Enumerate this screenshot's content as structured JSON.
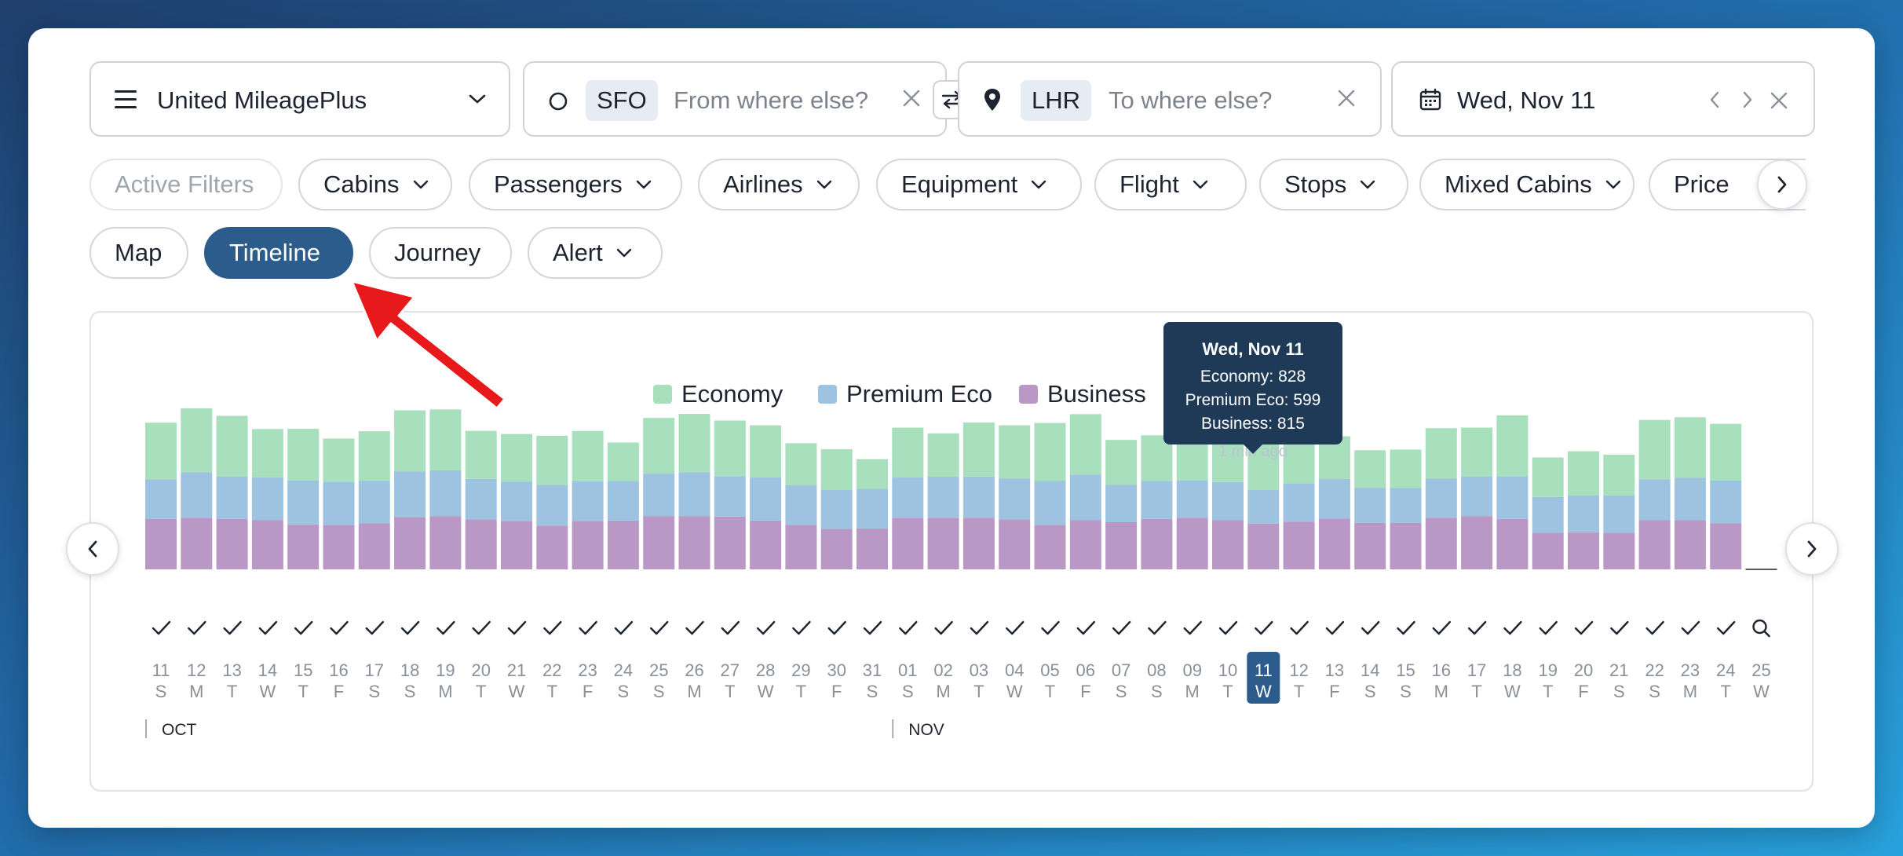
{
  "program": {
    "label": "United MileagePlus"
  },
  "origin": {
    "code": "SFO",
    "placeholder": "From where else?"
  },
  "destination": {
    "code": "LHR",
    "placeholder": "To where else?"
  },
  "date": {
    "label": "Wed, Nov 11"
  },
  "filters": [
    "Active Filters",
    "Cabins",
    "Passengers",
    "Airlines",
    "Equipment",
    "Flight",
    "Stops",
    "Mixed Cabins",
    "Price"
  ],
  "views": [
    "Map",
    "Timeline",
    "Journey",
    "Alert"
  ],
  "legend": [
    "Economy",
    "Premium Eco",
    "Business"
  ],
  "colors": {
    "economy": "#a8dfbd",
    "premium": "#9ec3e0",
    "business": "#b998c6",
    "accent": "#2c5c8c",
    "arrow": "#e8191a"
  },
  "tooltip": {
    "title": "Wed, Nov 11",
    "economy": "Economy: 828",
    "premium": "Premium Eco: 599",
    "business": "Business: 815",
    "time": "1 min ago"
  },
  "months": [
    "OCT",
    "NOV"
  ],
  "chart_data": {
    "type": "bar",
    "stacked": true,
    "categories": [
      "11",
      "12",
      "13",
      "14",
      "15",
      "16",
      "17",
      "18",
      "19",
      "20",
      "21",
      "22",
      "23",
      "24",
      "25",
      "26",
      "27",
      "28",
      "29",
      "30",
      "31",
      "01",
      "02",
      "03",
      "04",
      "05",
      "06",
      "07",
      "08",
      "09",
      "10",
      "11",
      "12",
      "13",
      "14",
      "15",
      "16",
      "17",
      "18",
      "19",
      "20",
      "21",
      "22",
      "23",
      "24",
      "25"
    ],
    "weekdays": [
      "S",
      "M",
      "T",
      "W",
      "T",
      "F",
      "S",
      "S",
      "M",
      "T",
      "W",
      "T",
      "F",
      "S",
      "S",
      "M",
      "T",
      "W",
      "T",
      "F",
      "S",
      "S",
      "M",
      "T",
      "W",
      "T",
      "F",
      "S",
      "S",
      "M",
      "T",
      "W",
      "T",
      "F",
      "S",
      "S",
      "M",
      "T",
      "W",
      "T",
      "F",
      "S",
      "S",
      "M",
      "T",
      "W"
    ],
    "checked": [
      true,
      true,
      true,
      true,
      true,
      true,
      true,
      true,
      true,
      true,
      true,
      true,
      true,
      true,
      true,
      true,
      true,
      true,
      true,
      true,
      true,
      true,
      true,
      true,
      true,
      true,
      true,
      true,
      true,
      true,
      true,
      true,
      true,
      true,
      true,
      true,
      true,
      true,
      true,
      true,
      true,
      true,
      true,
      true,
      true,
      false
    ],
    "selected_index": 31,
    "series": [
      {
        "name": "Economy",
        "values": [
          1010,
          1140,
          1080,
          860,
          922,
          772,
          882,
          1092,
          1082,
          857,
          852,
          876,
          896,
          685,
          992,
          1040,
          990,
          932,
          750,
          727,
          528,
          890,
          772,
          962,
          946,
          1035,
          1076,
          802,
          813,
          762,
          782,
          828,
          880,
          762,
          669,
          687,
          898,
          870,
          1083,
          704,
          790,
          725,
          1060,
          1080,
          1010,
          0
        ]
      },
      {
        "name": "Premium Eco",
        "values": [
          705,
          811,
          757,
          761,
          784,
          770,
          761,
          813,
          819,
          722,
          701,
          726,
          711,
          708,
          757,
          781,
          723,
          767,
          709,
          694,
          706,
          727,
          732,
          735,
          732,
          785,
          811,
          665,
          677,
          666,
          677,
          599,
          686,
          706,
          625,
          619,
          699,
          707,
          763,
          641,
          656,
          668,
          724,
          752,
          765,
          0
        ]
      },
      {
        "name": "Business",
        "values": [
          900,
          920,
          900,
          880,
          800,
          790,
          820,
          930,
          950,
          890,
          860,
          780,
          860,
          870,
          950,
          950,
          940,
          870,
          790,
          720,
          730,
          910,
          920,
          920,
          890,
          790,
          880,
          840,
          900,
          920,
          880,
          815,
          850,
          905,
          830,
          830,
          920,
          950,
          900,
          650,
          660,
          650,
          880,
          880,
          820,
          0
        ]
      }
    ],
    "ylim": [
      0,
      2800
    ]
  }
}
